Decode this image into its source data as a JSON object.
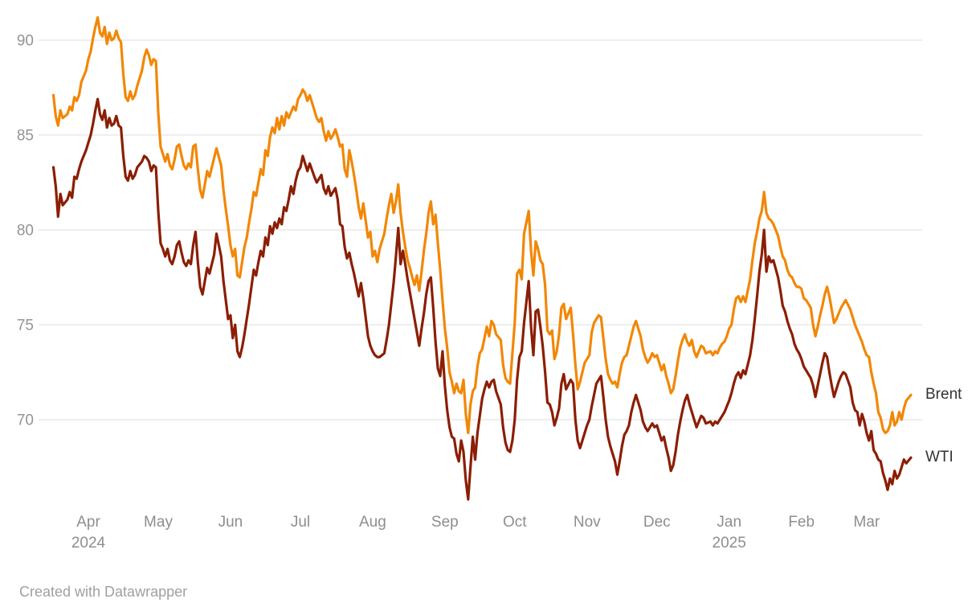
{
  "footer": {
    "credit": "Created with Datawrapper"
  },
  "colors": {
    "brent": "#F28705",
    "wti": "#8B1E04",
    "grid": "#E4E4E4",
    "y_axis_text": "#949494",
    "x_axis_text": "#8E8E8E",
    "series_label_text": "#333333",
    "background": "#FFFFFF"
  },
  "chart_data": {
    "type": "line",
    "title": "",
    "xlabel": "",
    "ylabel": "",
    "grid": "horizontal",
    "legend_position": "line-end-labels",
    "y_ticks": [
      70,
      75,
      80,
      85,
      90
    ],
    "y_range": [
      64.3,
      91.9
    ],
    "x_unit": "days since 2024-04-01",
    "x_range": [
      -15.5,
      353
    ],
    "x_ticks": [
      {
        "label": "Apr",
        "year": "2024",
        "day": 0
      },
      {
        "label": "May",
        "day": 30
      },
      {
        "label": "Jun",
        "day": 61
      },
      {
        "label": "Jul",
        "day": 91
      },
      {
        "label": "Aug",
        "day": 122
      },
      {
        "label": "Sep",
        "day": 153
      },
      {
        "label": "Oct",
        "day": 183
      },
      {
        "label": "Nov",
        "day": 214
      },
      {
        "label": "Dec",
        "day": 244
      },
      {
        "label": "Jan",
        "year": "2025",
        "day": 275
      },
      {
        "label": "Feb",
        "day": 306
      },
      {
        "label": "Mar",
        "day": 334
      }
    ],
    "x_days": [
      -15,
      -14,
      -13,
      -12,
      -11,
      -9,
      -8,
      -7,
      -6,
      -5,
      -4,
      -3,
      -1,
      0,
      1,
      2,
      3,
      4,
      5,
      6,
      7,
      8,
      9,
      10,
      11,
      12,
      13,
      14,
      15,
      16,
      17,
      18,
      19,
      20,
      21,
      23,
      24,
      25,
      26,
      27,
      28,
      29,
      30,
      31,
      32,
      33,
      34,
      35,
      36,
      37,
      38,
      39,
      40,
      41,
      42,
      43,
      44,
      45,
      46,
      47,
      48,
      49,
      50,
      51,
      52,
      53,
      54,
      55,
      57,
      58,
      59,
      60,
      61,
      62,
      63,
      64,
      65,
      66,
      67,
      68,
      69,
      70,
      71,
      72,
      73,
      74,
      75,
      76,
      77,
      78,
      79,
      80,
      81,
      82,
      83,
      84,
      85,
      86,
      87,
      88,
      89,
      90,
      91,
      92,
      93,
      94,
      95,
      97,
      98,
      99,
      100,
      101,
      102,
      103,
      104,
      105,
      106,
      107,
      108,
      109,
      110,
      111,
      112,
      113,
      114,
      115,
      116,
      117,
      118,
      119,
      120,
      121,
      122,
      123,
      124,
      125,
      127,
      128,
      129,
      130,
      131,
      132,
      133,
      134,
      135,
      136,
      137,
      138,
      139,
      140,
      141,
      142,
      143,
      144,
      145,
      146,
      147,
      148,
      149,
      150,
      151,
      152,
      153,
      154,
      155,
      156,
      157,
      158,
      159,
      160,
      161,
      162,
      163,
      164,
      165,
      166,
      167,
      168,
      169,
      170,
      171,
      172,
      173,
      174,
      175,
      177,
      178,
      179,
      180,
      181,
      182,
      183,
      184,
      185,
      186,
      187,
      188,
      189,
      190,
      191,
      192,
      193,
      194,
      195,
      196,
      197,
      198,
      199,
      200,
      201,
      202,
      203,
      204,
      205,
      207,
      208,
      209,
      210,
      211,
      212,
      213,
      214,
      215,
      216,
      217,
      218,
      219,
      220,
      221,
      222,
      223,
      224,
      225,
      226,
      227,
      228,
      229,
      230,
      231,
      232,
      233,
      234,
      235,
      237,
      238,
      239,
      240,
      241,
      242,
      243,
      244,
      245,
      246,
      247,
      248,
      249,
      250,
      251,
      252,
      253,
      254,
      255,
      256,
      257,
      258,
      259,
      260,
      261,
      262,
      263,
      264,
      265,
      267,
      268,
      269,
      270,
      271,
      272,
      273,
      274,
      275,
      276,
      277,
      278,
      279,
      280,
      281,
      282,
      283,
      284,
      285,
      286,
      287,
      288,
      289,
      290,
      291,
      292,
      293,
      294,
      296,
      297,
      298,
      299,
      300,
      301,
      302,
      303,
      304,
      305,
      306,
      307,
      308,
      309,
      310,
      311,
      312,
      313,
      314,
      315,
      316,
      317,
      318,
      319,
      320,
      321,
      322,
      323,
      324,
      325,
      327,
      328,
      329,
      330,
      331,
      332,
      333,
      334,
      335,
      336,
      337,
      338,
      339,
      340,
      341,
      342,
      343,
      344,
      345,
      346,
      347,
      348,
      349,
      350,
      351,
      353
    ],
    "series": [
      {
        "name": "Brent",
        "color": "#F28705",
        "values": [
          87.1,
          86.0,
          85.5,
          86.3,
          85.9,
          86.1,
          86.5,
          86.3,
          87.0,
          86.8,
          87.1,
          87.8,
          88.4,
          89.0,
          89.4,
          90.1,
          90.7,
          91.2,
          90.4,
          90.2,
          90.7,
          89.8,
          90.4,
          90.0,
          90.1,
          90.5,
          90.1,
          89.9,
          88.2,
          87.0,
          86.8,
          87.3,
          86.9,
          87.1,
          87.6,
          88.4,
          89.1,
          89.5,
          89.2,
          88.7,
          89.0,
          88.9,
          86.2,
          84.4,
          84.0,
          83.6,
          84.0,
          83.4,
          83.2,
          83.7,
          84.4,
          84.5,
          83.9,
          83.4,
          83.2,
          83.5,
          83.3,
          84.4,
          84.5,
          83.2,
          82.1,
          81.7,
          82.4,
          83.1,
          82.8,
          83.3,
          83.8,
          84.3,
          83.4,
          82.1,
          81.1,
          80.2,
          79.2,
          78.6,
          79.0,
          77.6,
          77.5,
          78.3,
          79.1,
          79.6,
          80.4,
          81.1,
          82.0,
          81.8,
          82.5,
          83.2,
          82.9,
          84.2,
          83.9,
          84.9,
          85.4,
          85.1,
          85.9,
          85.3,
          86.0,
          85.5,
          86.2,
          85.9,
          86.2,
          86.5,
          86.3,
          86.9,
          87.1,
          87.4,
          87.2,
          86.8,
          87.1,
          86.3,
          85.9,
          85.7,
          85.9,
          85.2,
          84.7,
          85.2,
          84.8,
          85.0,
          85.3,
          84.9,
          84.4,
          84.5,
          83.2,
          82.8,
          84.2,
          83.6,
          82.9,
          82.1,
          81.2,
          80.6,
          81.4,
          80.5,
          79.6,
          79.9,
          78.6,
          78.9,
          78.3,
          79.0,
          79.8,
          80.6,
          81.3,
          81.9,
          80.9,
          81.5,
          82.4,
          80.9,
          79.9,
          79.1,
          78.4,
          78.0,
          77.5,
          77.1,
          77.6,
          76.8,
          77.8,
          78.9,
          79.8,
          80.9,
          81.5,
          80.3,
          80.8,
          79.3,
          77.9,
          76.3,
          74.8,
          73.8,
          72.5,
          72.0,
          71.4,
          71.9,
          71.5,
          71.4,
          72.1,
          70.3,
          69.3,
          70.8,
          71.5,
          71.7,
          72.8,
          73.5,
          73.7,
          74.3,
          74.9,
          74.4,
          75.2,
          75.0,
          74.5,
          74.2,
          72.9,
          72.2,
          72.0,
          71.9,
          73.5,
          75.1,
          77.7,
          77.9,
          77.4,
          79.8,
          80.4,
          81.0,
          78.9,
          77.6,
          79.4,
          79.0,
          78.4,
          78.2,
          77.1,
          74.7,
          74.5,
          74.7,
          73.2,
          73.6,
          74.5,
          75.9,
          76.1,
          75.3,
          75.9,
          74.5,
          72.9,
          71.6,
          72.0,
          72.5,
          73.0,
          73.2,
          73.4,
          74.6,
          75.1,
          75.3,
          75.5,
          75.4,
          74.3,
          73.2,
          72.4,
          72.1,
          71.9,
          72.0,
          71.7,
          72.4,
          73.0,
          73.3,
          73.4,
          73.9,
          74.4,
          74.9,
          75.2,
          74.4,
          73.7,
          73.3,
          73.0,
          73.2,
          73.5,
          73.3,
          73.4,
          73.0,
          72.6,
          72.9,
          72.3,
          71.9,
          71.4,
          71.6,
          72.3,
          73.1,
          73.8,
          74.2,
          74.5,
          74.1,
          73.9,
          74.2,
          73.6,
          73.3,
          73.6,
          73.9,
          73.8,
          73.5,
          73.6,
          73.4,
          73.6,
          73.5,
          73.8,
          74.0,
          74.1,
          74.4,
          74.8,
          75.0,
          75.8,
          76.4,
          76.5,
          76.2,
          76.5,
          76.2,
          76.8,
          77.4,
          78.4,
          79.3,
          79.9,
          80.6,
          81.0,
          82.0,
          80.9,
          80.6,
          80.5,
          80.3,
          79.7,
          79.1,
          78.6,
          78.4,
          77.9,
          77.6,
          77.5,
          77.2,
          77.0,
          77.0,
          76.9,
          76.4,
          76.3,
          76.1,
          75.9,
          75.0,
          74.4,
          74.9,
          75.5,
          76.0,
          76.6,
          77.0,
          76.5,
          75.8,
          75.1,
          75.3,
          75.6,
          75.9,
          76.1,
          76.3,
          75.8,
          75.4,
          75.0,
          74.7,
          74.4,
          74.1,
          73.7,
          73.4,
          73.3,
          72.5,
          71.9,
          71.4,
          70.4,
          70.1,
          69.5,
          69.3,
          69.4,
          69.7,
          70.4,
          69.7,
          69.9,
          70.4,
          70.0,
          70.6,
          71.0,
          71.3
        ]
      },
      {
        "name": "WTI",
        "color": "#8B1E04",
        "values": [
          83.3,
          82.3,
          80.7,
          81.9,
          81.3,
          81.6,
          82.0,
          81.7,
          82.8,
          82.7,
          83.2,
          83.6,
          84.2,
          84.6,
          85.0,
          85.6,
          86.3,
          86.9,
          86.1,
          85.8,
          86.3,
          85.4,
          85.9,
          85.5,
          85.6,
          86.0,
          85.5,
          85.4,
          83.9,
          82.8,
          82.6,
          83.1,
          82.7,
          82.9,
          83.3,
          83.6,
          83.9,
          83.8,
          83.6,
          83.1,
          83.4,
          83.3,
          81.0,
          79.3,
          79.0,
          78.6,
          79.0,
          78.4,
          78.2,
          78.6,
          79.2,
          79.4,
          78.8,
          78.3,
          78.1,
          78.4,
          78.2,
          79.2,
          79.9,
          78.3,
          77.0,
          76.6,
          77.3,
          78.0,
          77.7,
          78.2,
          78.7,
          79.8,
          78.6,
          77.3,
          76.3,
          75.3,
          75.5,
          74.3,
          75.0,
          73.6,
          73.3,
          73.8,
          74.5,
          75.3,
          76.1,
          77.0,
          77.9,
          77.6,
          78.3,
          78.9,
          78.6,
          79.6,
          79.2,
          80.2,
          79.8,
          80.4,
          80.1,
          80.6,
          80.3,
          81.2,
          81.0,
          81.6,
          82.3,
          81.9,
          82.6,
          83.1,
          83.3,
          83.9,
          83.5,
          83.1,
          83.5,
          82.8,
          82.5,
          82.7,
          82.9,
          82.2,
          81.9,
          82.3,
          81.8,
          82.0,
          82.2,
          81.6,
          80.3,
          80.2,
          79.1,
          78.5,
          78.8,
          78.2,
          77.7,
          77.1,
          76.5,
          77.2,
          76.4,
          75.4,
          74.4,
          73.9,
          73.6,
          73.4,
          73.3,
          73.3,
          73.5,
          74.2,
          75.0,
          76.1,
          77.2,
          78.6,
          80.1,
          78.2,
          78.9,
          78.2,
          77.4,
          76.7,
          76.0,
          75.3,
          74.6,
          73.9,
          74.8,
          75.6,
          76.6,
          77.3,
          77.5,
          75.9,
          74.1,
          72.7,
          72.3,
          73.6,
          71.8,
          70.5,
          69.6,
          69.1,
          69.0,
          68.2,
          67.8,
          68.9,
          68.3,
          66.8,
          65.8,
          67.5,
          69.1,
          67.9,
          69.3,
          70.2,
          71.1,
          71.6,
          72.0,
          71.7,
          72.0,
          72.1,
          71.5,
          70.8,
          69.6,
          68.8,
          68.4,
          68.3,
          68.9,
          70.0,
          72.1,
          73.3,
          73.6,
          75.1,
          76.2,
          77.3,
          74.9,
          73.4,
          75.7,
          75.8,
          74.9,
          73.9,
          72.5,
          70.9,
          70.8,
          70.4,
          69.7,
          70.1,
          70.6,
          71.9,
          72.4,
          71.6,
          72.1,
          71.9,
          70.0,
          68.9,
          68.5,
          68.9,
          69.3,
          69.7,
          70.0,
          70.7,
          71.3,
          71.9,
          72.1,
          72.3,
          71.2,
          70.0,
          69.1,
          68.6,
          68.2,
          67.8,
          67.1,
          67.8,
          68.6,
          69.2,
          69.4,
          69.7,
          70.4,
          70.9,
          71.3,
          70.5,
          69.9,
          69.6,
          69.4,
          69.6,
          69.8,
          69.6,
          69.7,
          69.3,
          68.9,
          69.1,
          68.5,
          68.0,
          67.3,
          67.6,
          68.3,
          69.2,
          69.9,
          70.5,
          71.0,
          71.3,
          70.8,
          70.4,
          70.0,
          69.6,
          69.9,
          70.2,
          70.1,
          69.8,
          69.9,
          69.7,
          69.9,
          69.8,
          70.0,
          70.2,
          70.4,
          70.7,
          71.0,
          71.4,
          71.9,
          72.3,
          72.5,
          72.2,
          72.6,
          72.4,
          72.9,
          73.4,
          74.2,
          75.3,
          76.5,
          77.8,
          78.7,
          80.0,
          77.8,
          78.6,
          78.3,
          78.4,
          77.5,
          76.8,
          76.0,
          75.7,
          75.2,
          74.8,
          74.5,
          74.0,
          73.7,
          73.5,
          73.2,
          72.8,
          72.6,
          72.4,
          72.2,
          71.8,
          71.2,
          71.8,
          72.4,
          73.0,
          73.5,
          73.3,
          72.5,
          71.8,
          71.2,
          71.6,
          72.0,
          72.3,
          72.5,
          72.4,
          71.7,
          70.9,
          70.5,
          70.4,
          69.7,
          70.3,
          69.9,
          69.3,
          68.9,
          69.4,
          68.4,
          68.2,
          67.9,
          67.8,
          67.2,
          66.8,
          66.3,
          66.9,
          66.6,
          67.3,
          66.9,
          67.1,
          67.5,
          67.9,
          67.7,
          68.0
        ]
      }
    ]
  }
}
